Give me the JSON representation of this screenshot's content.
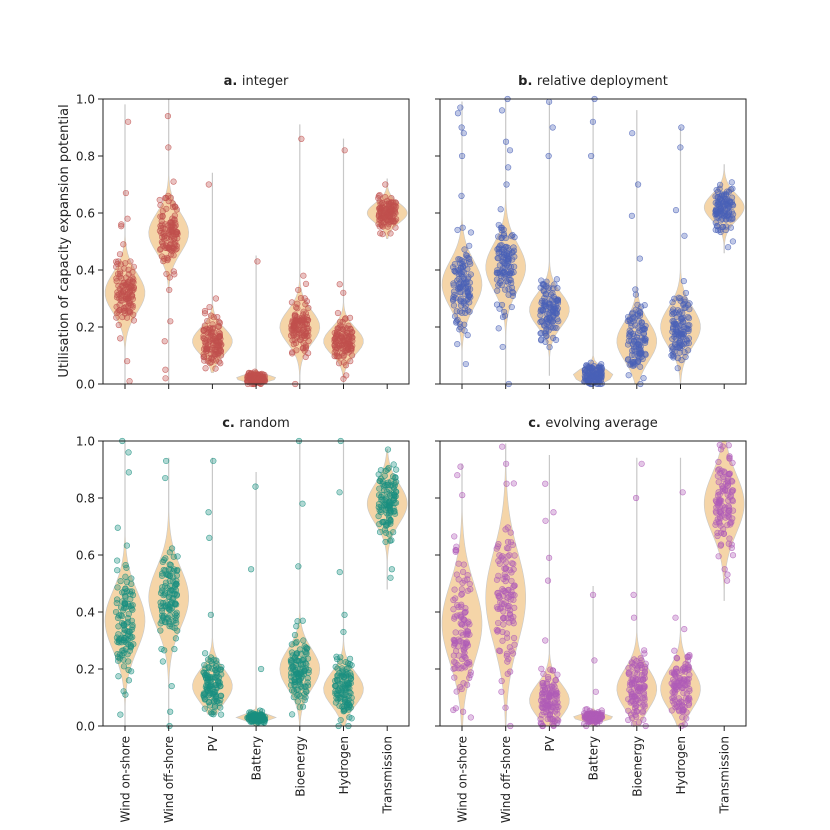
{
  "figure": {
    "ylabel": "Utilisation of capacity expansion potential",
    "categories": [
      "Wind on-shore",
      "Wind off-shore",
      "PV",
      "Battery",
      "Bioenergy",
      "Hydrogen",
      "Transmission"
    ],
    "yticks": [
      "0.0",
      "0.2",
      "0.4",
      "0.6",
      "0.8",
      "1.0"
    ]
  },
  "chart_data": [
    {
      "type": "scatter",
      "panel_letter": "a.",
      "title": "integer",
      "ylim": [
        0,
        1
      ],
      "color": "#c0504d",
      "violin_color": "#f5d5a8",
      "series": [
        {
          "name": "Wind on-shore",
          "center": 0.32,
          "spread": 0.06,
          "min": 0.0,
          "max": 0.98,
          "outliers": [
            0.92,
            0.67,
            0.58,
            0.56,
            0.49,
            0.08,
            0.01
          ]
        },
        {
          "name": "Wind off-shore",
          "center": 0.53,
          "spread": 0.06,
          "min": 0.0,
          "max": 1.0,
          "outliers": [
            0.94,
            0.83,
            0.71,
            0.66,
            0.33,
            0.22,
            0.15,
            0.05,
            0.02
          ]
        },
        {
          "name": "PV",
          "center": 0.15,
          "spread": 0.04,
          "min": 0.04,
          "max": 0.74,
          "outliers": [
            0.7,
            0.3,
            0.27,
            0.24
          ]
        },
        {
          "name": "Battery",
          "center": 0.02,
          "spread": 0.01,
          "min": 0.0,
          "max": 0.45,
          "outliers": [
            0.43
          ]
        },
        {
          "name": "Bioenergy",
          "center": 0.2,
          "spread": 0.05,
          "min": 0.0,
          "max": 0.91,
          "outliers": [
            0.86,
            0.38,
            0.33
          ]
        },
        {
          "name": "Hydrogen",
          "center": 0.15,
          "spread": 0.04,
          "min": 0.0,
          "max": 0.86,
          "outliers": [
            0.82,
            0.35,
            0.32,
            0.03
          ]
        },
        {
          "name": "Transmission",
          "center": 0.6,
          "spread": 0.03,
          "min": 0.51,
          "max": 0.72,
          "outliers": [
            0.7
          ]
        }
      ]
    },
    {
      "type": "scatter",
      "panel_letter": "b.",
      "title": "relative deployment",
      "ylim": [
        0,
        1
      ],
      "color": "#4a62b8",
      "violin_color": "#f5d5a8",
      "series": [
        {
          "name": "Wind on-shore",
          "center": 0.35,
          "spread": 0.07,
          "min": 0.0,
          "max": 0.99,
          "outliers": [
            0.97,
            0.95,
            0.9,
            0.88,
            0.8,
            0.66,
            0.14,
            0.07
          ]
        },
        {
          "name": "Wind off-shore",
          "center": 0.41,
          "spread": 0.07,
          "min": 0.0,
          "max": 1.0,
          "outliers": [
            1.0,
            0.96,
            0.85,
            0.82,
            0.76,
            0.7,
            0.13,
            0.0
          ]
        },
        {
          "name": "PV",
          "center": 0.26,
          "spread": 0.05,
          "min": 0.03,
          "max": 0.99,
          "outliers": [
            0.99,
            0.9,
            0.8
          ]
        },
        {
          "name": "Battery",
          "center": 0.03,
          "spread": 0.02,
          "min": 0.0,
          "max": 1.0,
          "outliers": [
            1.0,
            0.92,
            0.8
          ]
        },
        {
          "name": "Bioenergy",
          "center": 0.15,
          "spread": 0.06,
          "min": 0.0,
          "max": 0.96,
          "outliers": [
            0.88,
            0.7,
            0.59,
            0.44
          ]
        },
        {
          "name": "Hydrogen",
          "center": 0.2,
          "spread": 0.06,
          "min": 0.0,
          "max": 0.9,
          "outliers": [
            0.9,
            0.83,
            0.61,
            0.52
          ]
        },
        {
          "name": "Transmission",
          "center": 0.62,
          "spread": 0.04,
          "min": 0.46,
          "max": 0.77,
          "outliers": [
            0.48
          ]
        }
      ]
    },
    {
      "type": "scatter",
      "panel_letter": "c.",
      "title": "random",
      "ylim": [
        0,
        1
      ],
      "color": "#1a9080",
      "violin_color": "#f5d5a8",
      "series": [
        {
          "name": "Wind on-shore",
          "center": 0.37,
          "spread": 0.09,
          "min": 0.0,
          "max": 1.0,
          "outliers": [
            1.0,
            0.96,
            0.89,
            0.11,
            0.04
          ]
        },
        {
          "name": "Wind off-shore",
          "center": 0.45,
          "spread": 0.09,
          "min": 0.0,
          "max": 0.94,
          "outliers": [
            0.93,
            0.87,
            0.14,
            0.05,
            0.0
          ]
        },
        {
          "name": "PV",
          "center": 0.14,
          "spread": 0.05,
          "min": 0.04,
          "max": 0.94,
          "outliers": [
            0.93,
            0.75,
            0.66,
            0.39
          ]
        },
        {
          "name": "Battery",
          "center": 0.03,
          "spread": 0.01,
          "min": 0.0,
          "max": 0.89,
          "outliers": [
            0.84,
            0.55,
            0.2
          ]
        },
        {
          "name": "Bioenergy",
          "center": 0.2,
          "spread": 0.06,
          "min": 0.0,
          "max": 1.0,
          "outliers": [
            1.0,
            0.78,
            0.56,
            0.35
          ]
        },
        {
          "name": "Hydrogen",
          "center": 0.13,
          "spread": 0.05,
          "min": 0.0,
          "max": 1.0,
          "outliers": [
            1.0,
            0.82,
            0.54,
            0.39,
            0.33
          ]
        },
        {
          "name": "Transmission",
          "center": 0.78,
          "spread": 0.06,
          "min": 0.48,
          "max": 0.97,
          "outliers": [
            0.55,
            0.52
          ]
        }
      ]
    },
    {
      "type": "scatter",
      "panel_letter": "c.",
      "title": "evolving average",
      "ylim": [
        0,
        1
      ],
      "color": "#b05cb8",
      "violin_color": "#f5d5a8",
      "series": [
        {
          "name": "Wind on-shore",
          "center": 0.36,
          "spread": 0.12,
          "min": 0.0,
          "max": 0.92,
          "outliers": [
            0.91,
            0.88,
            0.81,
            0.15,
            0.05
          ]
        },
        {
          "name": "Wind off-shore",
          "center": 0.45,
          "spread": 0.14,
          "min": 0.0,
          "max": 0.99,
          "outliers": [
            0.98,
            0.92,
            0.85,
            0.12,
            0.0
          ]
        },
        {
          "name": "PV",
          "center": 0.09,
          "spread": 0.05,
          "min": 0.0,
          "max": 0.95,
          "outliers": [
            0.85,
            0.75,
            0.72,
            0.59,
            0.51,
            0.3
          ]
        },
        {
          "name": "Battery",
          "center": 0.03,
          "spread": 0.01,
          "min": 0.0,
          "max": 0.49,
          "outliers": [
            0.46,
            0.23,
            0.12
          ]
        },
        {
          "name": "Bioenergy",
          "center": 0.13,
          "spread": 0.06,
          "min": 0.0,
          "max": 0.94,
          "outliers": [
            0.92,
            0.8,
            0.46,
            0.38
          ]
        },
        {
          "name": "Hydrogen",
          "center": 0.13,
          "spread": 0.06,
          "min": 0.0,
          "max": 0.94,
          "outliers": [
            0.82,
            0.38,
            0.34
          ]
        },
        {
          "name": "Transmission",
          "center": 0.78,
          "spread": 0.09,
          "min": 0.44,
          "max": 1.0,
          "outliers": [
            0.51,
            0.55
          ]
        }
      ]
    }
  ]
}
